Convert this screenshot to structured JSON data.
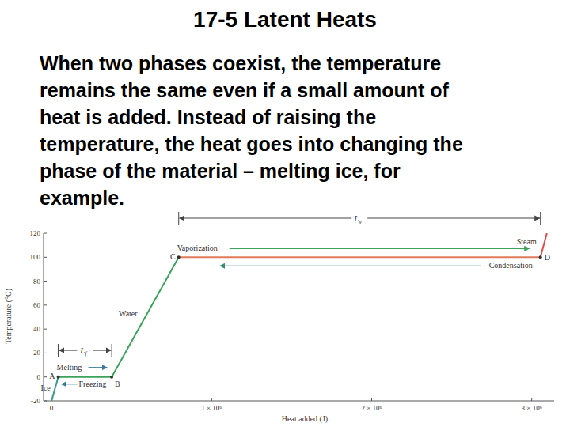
{
  "slide": {
    "title": "17-5 Latent Heats",
    "text": [
      "When two phases coexist, the temperature",
      "remains the same even if a small amount of",
      "heat is added. Instead of raising the",
      "temperature, the heat goes into changing the",
      "phase of the material – melting ice, for",
      "example."
    ]
  },
  "chart_data": {
    "type": "line",
    "x_label": "Heat added (J)",
    "y_label": "Temperature (°C)",
    "xlim": [
      -50000,
      3140000
    ],
    "ylim": [
      -20,
      120
    ],
    "xticks": [
      0,
      {
        "value": 1000000,
        "label": "1 × 10⁶"
      },
      {
        "value": 2000000,
        "label": "2 × 10⁶"
      },
      {
        "value": 3000000,
        "label": "3 × 10⁶"
      }
    ],
    "yticks": [
      -20,
      0,
      20,
      40,
      60,
      80,
      100,
      120
    ],
    "grid": false,
    "series": [
      {
        "x": [
          0,
          41800
        ],
        "values": [
          -20,
          0
        ],
        "color": "#3a9a8a"
      },
      {
        "x": [
          41800,
          375800
        ],
        "values": [
          0,
          0
        ],
        "color": "#3aa35a"
      },
      {
        "x": [
          375800,
          794400
        ],
        "values": [
          0,
          100
        ],
        "color": "#3aa35a"
      },
      {
        "x": [
          794400,
          3054400
        ],
        "values": [
          100,
          100
        ],
        "color": "#e07a5a"
      },
      {
        "x": [
          3054400,
          3094600
        ],
        "values": [
          100,
          120
        ],
        "color": "#e04848"
      }
    ],
    "annotations": {
      "ice": "Ice",
      "melting": "Melting",
      "freezing": "Freezing",
      "water": "Water",
      "vaporization": "Vaporization",
      "condensation": "Condensation",
      "steam": "Steam",
      "point_a": "A",
      "point_b": "B",
      "point_c": "C",
      "point_d": "D",
      "lf": "L",
      "lf_sub": "f",
      "lv": "L",
      "lv_sub": "v"
    }
  }
}
